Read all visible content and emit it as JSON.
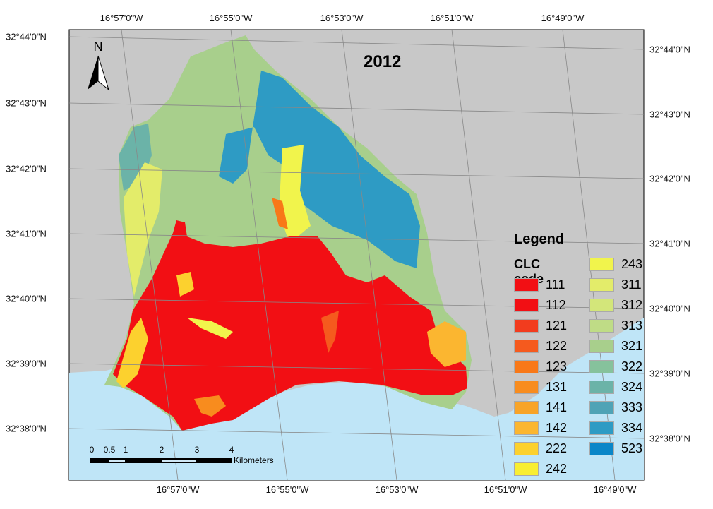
{
  "map": {
    "title": "2012",
    "north_label": "N",
    "top_longitudes": [
      "16°57'0\"W",
      "16°55'0\"W",
      "16°53'0\"W",
      "16°51'0\"W",
      "16°49'0\"W"
    ],
    "bottom_longitudes": [
      "16°57'0\"W",
      "16°55'0\"W",
      "16°53'0\"W",
      "16°51'0\"W",
      "16°49'0\"W"
    ],
    "left_latitudes": [
      "32°44'0\"N",
      "32°43'0\"N",
      "32°42'0\"N",
      "32°41'0\"N",
      "32°40'0\"N",
      "32°39'0\"N",
      "32°38'0\"N"
    ],
    "right_latitudes": [
      "32°44'0\"N",
      "32°43'0\"N",
      "32°42'0\"N",
      "32°41'0\"N",
      "32°40'0\"N",
      "32°39'0\"N",
      "32°38'0\"N"
    ]
  },
  "legend": {
    "title": "Legend",
    "subtitle": "CLC code",
    "items": [
      {
        "code": "111",
        "color": "#f20f14"
      },
      {
        "code": "112",
        "color": "#f20f14"
      },
      {
        "code": "121",
        "color": "#f23c1e"
      },
      {
        "code": "122",
        "color": "#f55a1e"
      },
      {
        "code": "123",
        "color": "#f87818"
      },
      {
        "code": "131",
        "color": "#f88c1e"
      },
      {
        "code": "141",
        "color": "#f8a428"
      },
      {
        "code": "142",
        "color": "#fbb630"
      },
      {
        "code": "222",
        "color": "#fcd12e"
      },
      {
        "code": "242",
        "color": "#f8ee32"
      },
      {
        "code": "243",
        "color": "#f1f44c"
      },
      {
        "code": "311",
        "color": "#e3ec6a"
      },
      {
        "code": "312",
        "color": "#d3e67a"
      },
      {
        "code": "313",
        "color": "#bfdc86"
      },
      {
        "code": "321",
        "color": "#a8cf8c"
      },
      {
        "code": "322",
        "color": "#86c29c"
      },
      {
        "code": "324",
        "color": "#6bb3a8"
      },
      {
        "code": "333",
        "color": "#4fa3b6"
      },
      {
        "code": "334",
        "color": "#2e9bc4"
      },
      {
        "code": "523",
        "color": "#0a86c8"
      }
    ]
  },
  "scale": {
    "ticks": [
      "0",
      "0.5",
      "1",
      "2",
      "3",
      "4"
    ],
    "unit": "Kilometers"
  }
}
